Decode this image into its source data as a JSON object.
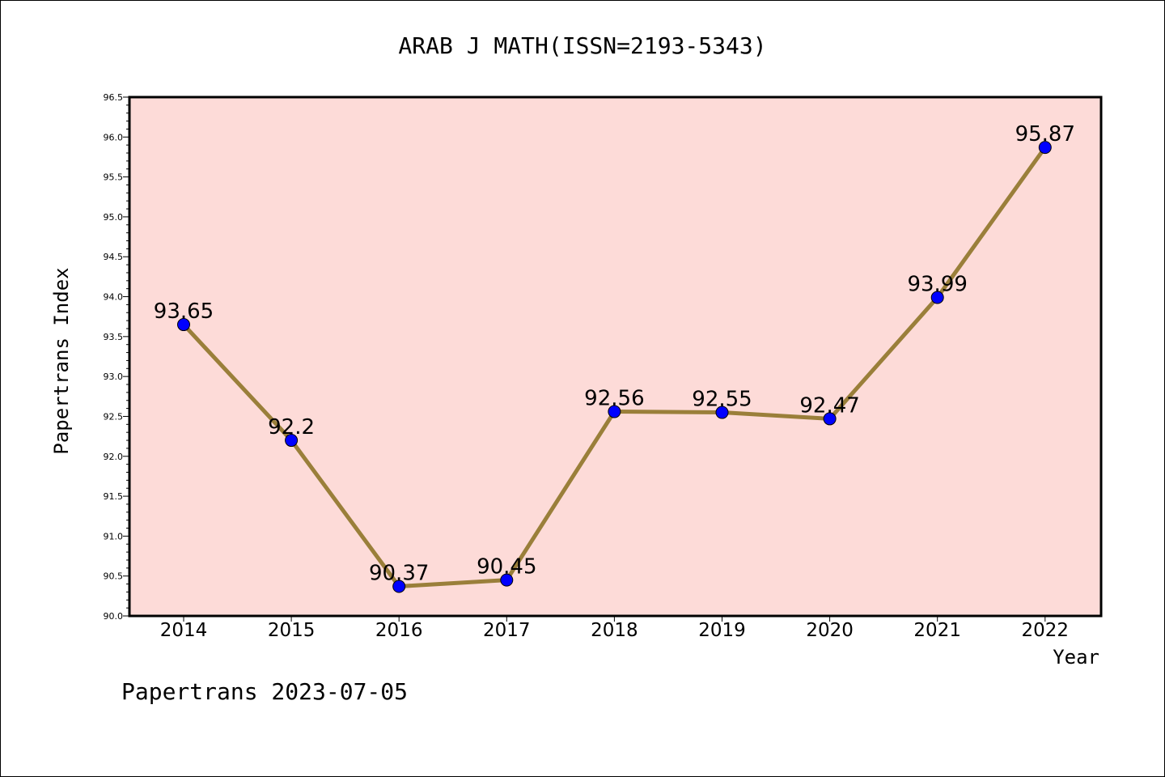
{
  "chart_data": {
    "type": "line",
    "title": "ARAB J MATH(ISSN=2193-5343)",
    "xlabel": "Year",
    "ylabel": "Papertrans Index",
    "categories": [
      "2014",
      "2015",
      "2016",
      "2017",
      "2018",
      "2019",
      "2020",
      "2021",
      "2022"
    ],
    "series": [
      {
        "values": [
          93.65,
          92.2,
          90.37,
          90.45,
          92.56,
          92.55,
          92.47,
          93.99,
          95.87
        ],
        "labels": [
          "93.65",
          "92.2",
          "90.37",
          "90.45",
          "92.56",
          "92.55",
          "92.47",
          "93.99",
          "95.87"
        ]
      }
    ],
    "ylim": [
      90.0,
      96.5
    ],
    "yticks": [
      "90.0",
      "90.5",
      "91.0",
      "91.5",
      "92.0",
      "92.5",
      "93.0",
      "93.5",
      "94.0",
      "94.5",
      "95.0",
      "95.5",
      "96.0",
      "96.5"
    ],
    "grid": false,
    "colors": {
      "plot_background": "#fddbd8",
      "line": "#9a7f3a",
      "marker": "#0000ff"
    }
  },
  "footer": "Papertrans 2023-07-05"
}
